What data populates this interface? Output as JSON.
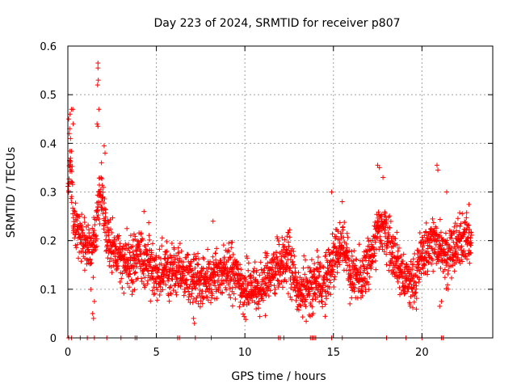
{
  "chart_data": {
    "type": "scatter",
    "title": "Day 223 of 2024, SRMTID for receiver p807",
    "xlabel": "GPS time / hours",
    "ylabel": "SRMTID / TECUs",
    "xlim": [
      0,
      24
    ],
    "ylim": [
      0,
      0.6
    ],
    "xticks": [
      0,
      5,
      10,
      15,
      20
    ],
    "xtick_labels": [
      "0",
      "5",
      "10",
      "15",
      "20"
    ],
    "yticks": [
      0,
      0.1,
      0.2,
      0.3,
      0.4,
      0.5,
      0.6
    ],
    "ytick_labels": [
      "0",
      "0.1",
      "0.2",
      "0.3",
      "0.4",
      "0.5",
      "0.6"
    ],
    "grid": true,
    "marker": "plus",
    "color": "#ff0000",
    "series": [
      {
        "name": "SRMTID",
        "envelope_x": [
          0,
          0.1,
          0.2,
          0.3,
          0.5,
          0.8,
          1.0,
          1.3,
          1.6,
          1.7,
          1.8,
          2.0,
          2.2,
          2.5,
          3.0,
          3.5,
          4.0,
          4.5,
          5.0,
          5.5,
          6.0,
          6.5,
          7.0,
          7.5,
          8.0,
          8.5,
          9.0,
          9.5,
          10.0,
          10.5,
          11.0,
          11.5,
          12.0,
          12.5,
          13.0,
          13.5,
          14.0,
          14.5,
          15.0,
          15.5,
          16.0,
          16.5,
          17.0,
          17.3,
          17.6,
          18.0,
          18.5,
          19.0,
          19.5,
          20.0,
          20.5,
          21.0,
          21.5,
          22.0,
          22.5,
          22.8
        ],
        "envelope_y": [
          0.3,
          0.38,
          0.33,
          0.24,
          0.22,
          0.2,
          0.19,
          0.18,
          0.21,
          0.27,
          0.3,
          0.28,
          0.2,
          0.18,
          0.16,
          0.15,
          0.17,
          0.16,
          0.13,
          0.14,
          0.14,
          0.13,
          0.12,
          0.11,
          0.12,
          0.13,
          0.14,
          0.13,
          0.1,
          0.1,
          0.11,
          0.13,
          0.15,
          0.17,
          0.1,
          0.09,
          0.12,
          0.11,
          0.17,
          0.2,
          0.13,
          0.12,
          0.15,
          0.19,
          0.23,
          0.22,
          0.17,
          0.12,
          0.11,
          0.17,
          0.2,
          0.19,
          0.17,
          0.19,
          0.21,
          0.2
        ],
        "spread": 0.055,
        "samples_per_hour": 110,
        "outliers": [
          {
            "x": 0.05,
            "y": 0.45
          },
          {
            "x": 0.12,
            "y": 0.46
          },
          {
            "x": 0.2,
            "y": 0.47
          },
          {
            "x": 0.28,
            "y": 0.47
          },
          {
            "x": 0.08,
            "y": 0.42
          },
          {
            "x": 0.1,
            "y": 0.43
          },
          {
            "x": 0.15,
            "y": 0.41
          },
          {
            "x": 0.3,
            "y": 0.44
          },
          {
            "x": 1.7,
            "y": 0.565
          },
          {
            "x": 1.7,
            "y": 0.555
          },
          {
            "x": 1.72,
            "y": 0.53
          },
          {
            "x": 1.68,
            "y": 0.52
          },
          {
            "x": 1.75,
            "y": 0.47
          },
          {
            "x": 1.65,
            "y": 0.44
          },
          {
            "x": 1.7,
            "y": 0.435
          },
          {
            "x": 2.05,
            "y": 0.395
          },
          {
            "x": 2.1,
            "y": 0.38
          },
          {
            "x": 1.9,
            "y": 0.36
          },
          {
            "x": 1.4,
            "y": 0.05
          },
          {
            "x": 1.45,
            "y": 0.04
          },
          {
            "x": 1.5,
            "y": 0.075
          },
          {
            "x": 7.1,
            "y": 0.04
          },
          {
            "x": 7.15,
            "y": 0.03
          },
          {
            "x": 17.5,
            "y": 0.355
          },
          {
            "x": 17.6,
            "y": 0.35
          },
          {
            "x": 17.8,
            "y": 0.33
          },
          {
            "x": 20.85,
            "y": 0.355
          },
          {
            "x": 20.9,
            "y": 0.345
          },
          {
            "x": 21.4,
            "y": 0.3
          },
          {
            "x": 21.1,
            "y": 0.075
          },
          {
            "x": 21.0,
            "y": 0.065
          },
          {
            "x": 14.9,
            "y": 0.3
          },
          {
            "x": 15.5,
            "y": 0.28
          },
          {
            "x": 8.2,
            "y": 0.24
          },
          {
            "x": 4.3,
            "y": 0.26
          }
        ],
        "zero_clusters": [
          0.05,
          0.2,
          0.7,
          1.1,
          1.5,
          2.2,
          3.0,
          3.8,
          3.9,
          6.2,
          6.3,
          7.2,
          8.1,
          11.9,
          12.0,
          12.2,
          13.7,
          13.8,
          13.9,
          14.0,
          14.9,
          15.5,
          18.0,
          19.1,
          20.0,
          21.1,
          21.2
        ]
      }
    ]
  }
}
